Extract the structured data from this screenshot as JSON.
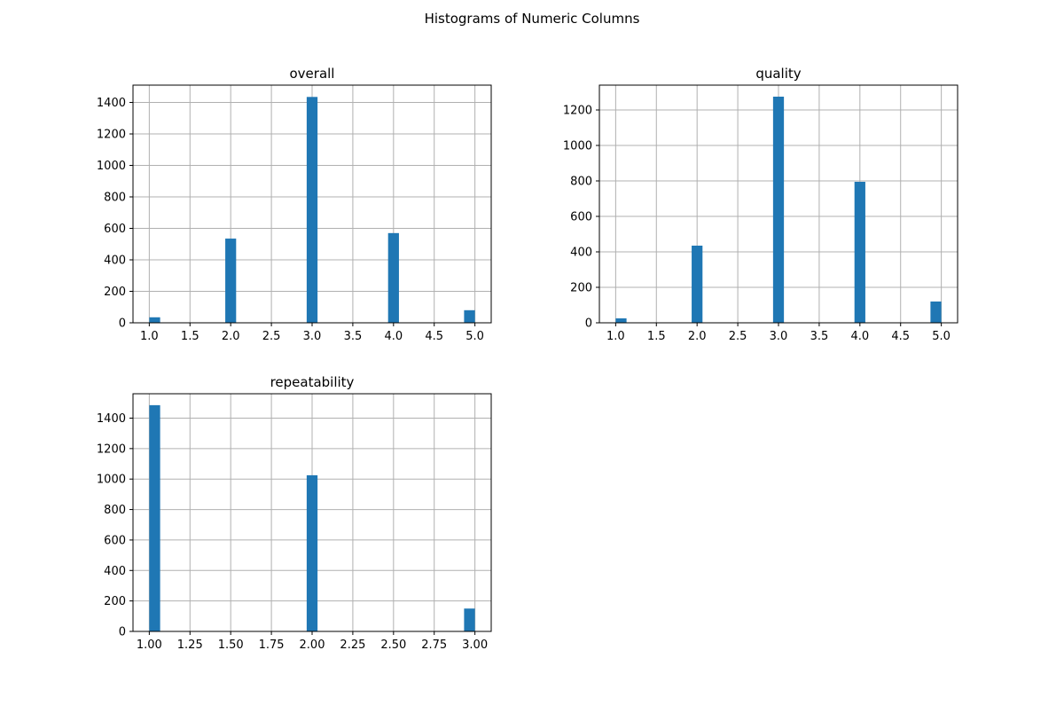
{
  "figure": {
    "title": "Histograms of Numeric Columns"
  },
  "chart_data": [
    {
      "type": "bar",
      "title": "overall",
      "categories": [
        "1.0",
        "2.0",
        "3.0",
        "4.0",
        "5.0"
      ],
      "x": [
        1,
        2,
        3,
        4,
        5
      ],
      "values": [
        35,
        535,
        1435,
        570,
        80
      ],
      "xlim": [
        0.8,
        5.2
      ],
      "ylim": [
        0,
        1510
      ],
      "xticks": [
        "1.0",
        "1.5",
        "2.0",
        "2.5",
        "3.0",
        "3.5",
        "4.0",
        "4.5",
        "5.0"
      ],
      "yticks": [
        "0",
        "200",
        "400",
        "600",
        "800",
        "1000",
        "1200",
        "1400"
      ],
      "grid": true,
      "color": "#1f77b4"
    },
    {
      "type": "bar",
      "title": "quality",
      "categories": [
        "1.0",
        "2.0",
        "3.0",
        "4.0",
        "5.0"
      ],
      "x": [
        1,
        2,
        3,
        4,
        5
      ],
      "values": [
        25,
        435,
        1275,
        795,
        120
      ],
      "xlim": [
        0.8,
        5.2
      ],
      "ylim": [
        0,
        1340
      ],
      "xticks": [
        "1.0",
        "1.5",
        "2.0",
        "2.5",
        "3.0",
        "3.5",
        "4.0",
        "4.5",
        "5.0"
      ],
      "yticks": [
        "0",
        "200",
        "400",
        "600",
        "800",
        "1000",
        "1200"
      ],
      "grid": true,
      "color": "#1f77b4"
    },
    {
      "type": "bar",
      "title": "repeatability",
      "categories": [
        "1.00",
        "2.00",
        "3.00"
      ],
      "x": [
        1,
        2,
        3
      ],
      "values": [
        1485,
        1025,
        150
      ],
      "xlim": [
        0.9,
        3.1
      ],
      "ylim": [
        0,
        1560
      ],
      "xticks": [
        "1.00",
        "1.25",
        "1.50",
        "1.75",
        "2.00",
        "2.25",
        "2.50",
        "2.75",
        "3.00"
      ],
      "yticks": [
        "0",
        "200",
        "400",
        "600",
        "800",
        "1000",
        "1200",
        "1400"
      ],
      "grid": true,
      "color": "#1f77b4"
    }
  ]
}
